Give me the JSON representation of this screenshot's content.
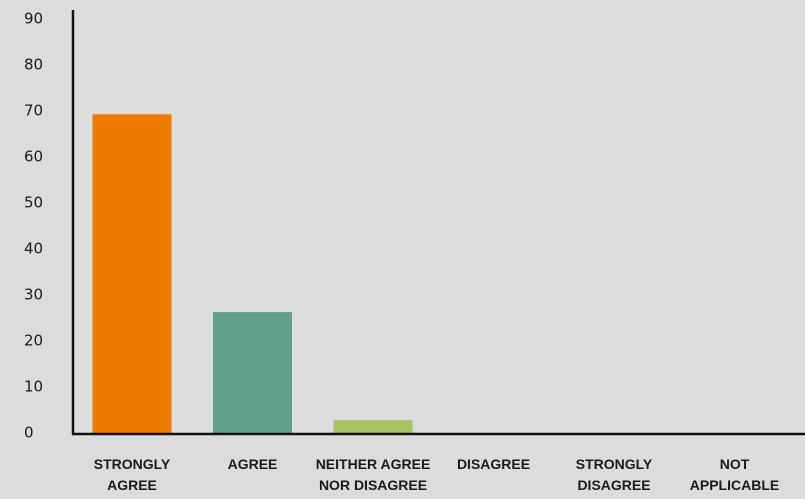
{
  "chart_data": {
    "type": "bar",
    "categories": [
      [
        "STRONGLY",
        "AGREE"
      ],
      [
        "AGREE"
      ],
      [
        "NEITHER AGREE",
        "NOR DISAGREE"
      ],
      [
        "DISAGREE"
      ],
      [
        "STRONGLY",
        "DISAGREE"
      ],
      [
        "NOT",
        "APPLICABLE"
      ]
    ],
    "values": [
      69.5,
      26.5,
      3,
      0,
      0,
      0
    ],
    "colors": [
      "#ee7a00",
      "#62a08c",
      "#a6c363",
      "#a6c363",
      "#a6c363",
      "#a6c363"
    ],
    "ylim": [
      0,
      90
    ],
    "yticks": [
      0,
      10,
      20,
      30,
      40,
      50,
      60,
      70,
      80,
      90
    ],
    "grid": false,
    "legend": "none"
  }
}
